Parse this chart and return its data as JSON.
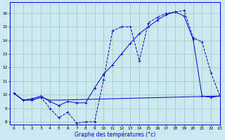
{
  "xlabel": "Graphe des températures (°c)",
  "background_color": "#cce8f0",
  "grid_color": "#99ccbb",
  "line_color": "#0000cc",
  "xlim": [
    -0.5,
    23
  ],
  "ylim": [
    7.8,
    16.8
  ],
  "yticks": [
    8,
    9,
    10,
    11,
    12,
    13,
    14,
    15,
    16
  ],
  "xticks": [
    0,
    1,
    2,
    3,
    4,
    5,
    6,
    7,
    8,
    9,
    10,
    11,
    12,
    13,
    14,
    15,
    16,
    17,
    18,
    19,
    20,
    21,
    22,
    23
  ],
  "line1_x": [
    0,
    1,
    2,
    3,
    4,
    5,
    6,
    7,
    8,
    9,
    10,
    11,
    12,
    13,
    14,
    15,
    16,
    17,
    18,
    19,
    20,
    21,
    22,
    23
  ],
  "line1_y": [
    10.1,
    9.6,
    9.6,
    9.8,
    9.0,
    8.3,
    8.7,
    7.9,
    8.0,
    8.0,
    11.1,
    14.7,
    15.0,
    15.0,
    12.5,
    15.3,
    15.7,
    16.0,
    16.1,
    16.2,
    14.2,
    13.9,
    11.6,
    9.9
  ],
  "line2_x": [
    0,
    1,
    2,
    3,
    4,
    5,
    6,
    7,
    8,
    9,
    10,
    11,
    12,
    13,
    14,
    15,
    16,
    17,
    18,
    19,
    20,
    21,
    22,
    23
  ],
  "line2_y": [
    10.1,
    9.6,
    9.7,
    9.9,
    9.5,
    9.2,
    9.5,
    9.4,
    9.4,
    10.5,
    11.5,
    12.2,
    13.0,
    13.8,
    14.5,
    15.0,
    15.5,
    15.9,
    16.1,
    15.8,
    14.1,
    9.9,
    9.8,
    9.9
  ],
  "line3_x": [
    0,
    1,
    2,
    3,
    4,
    5,
    23
  ],
  "line3_y": [
    10.1,
    9.6,
    9.6,
    9.8,
    9.6,
    9.6,
    9.9
  ]
}
